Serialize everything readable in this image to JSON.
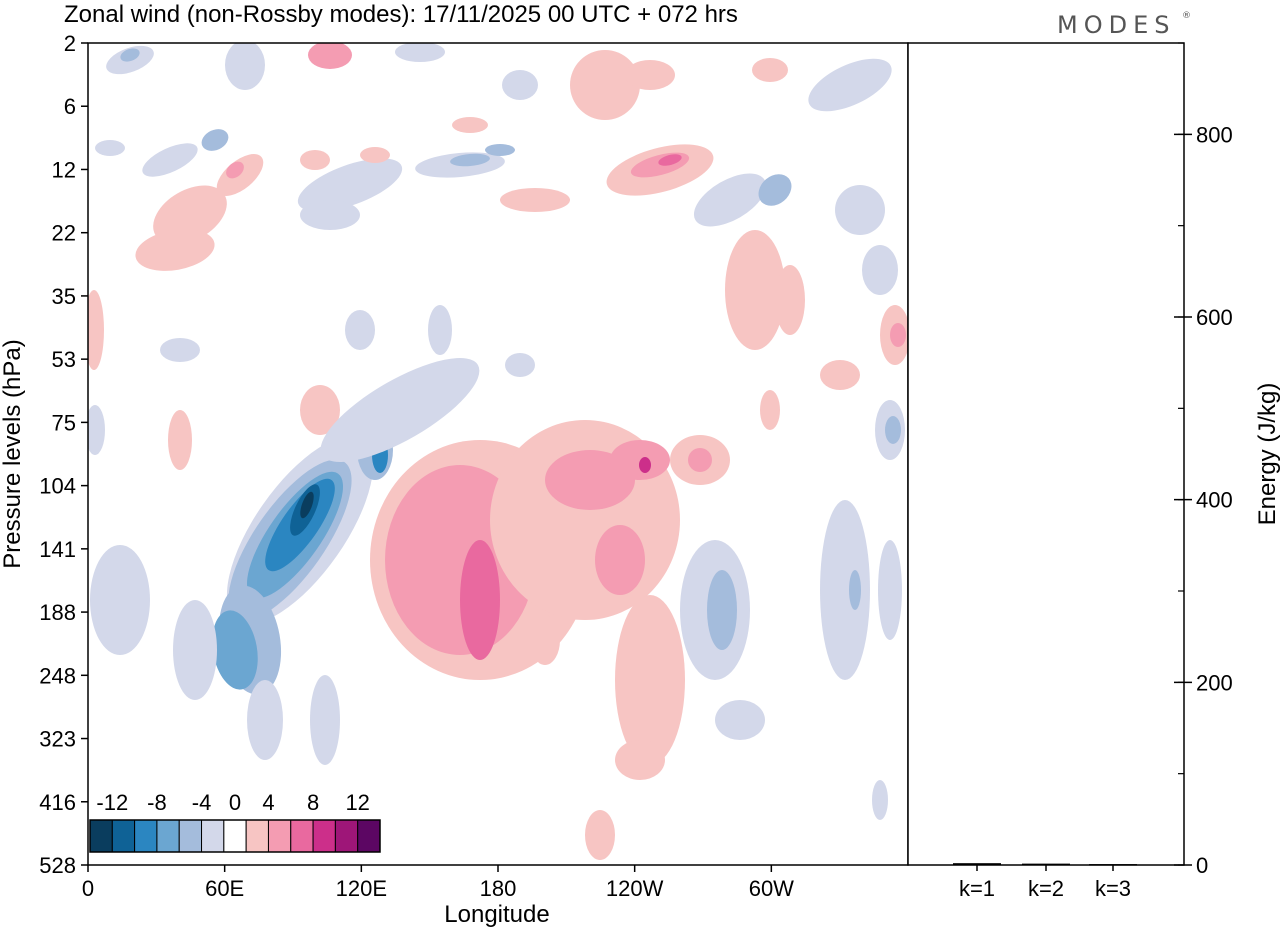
{
  "chart_data": [
    {
      "type": "heatmap",
      "title": "Zonal wind (non-Rossby modes):  17/11/2025  00 UTC  + 072 hrs",
      "xlabel": "Longitude",
      "ylabel": "Pressure levels (hPa)",
      "x_ticks": [
        "0",
        "60E",
        "120E",
        "180",
        "120W",
        "60W"
      ],
      "x_tick_degrees": [
        0,
        60,
        120,
        180,
        240,
        300
      ],
      "xlim": [
        0,
        360
      ],
      "y_ticks": [
        "2",
        "6",
        "12",
        "22",
        "35",
        "53",
        "75",
        "104",
        "141",
        "188",
        "248",
        "323",
        "416",
        "528"
      ],
      "colorbar": {
        "labels": [
          "-12",
          "-8",
          "-4",
          "0",
          "4",
          "8",
          "12"
        ],
        "levels": [
          -14,
          -12,
          -10,
          -8,
          -6,
          -4,
          -2,
          2,
          4,
          6,
          8,
          10,
          12,
          14
        ],
        "colors": [
          "#0a3d5e",
          "#0f6296",
          "#2b86c1",
          "#6ba6d1",
          "#a4bcdc",
          "#d3d8ea",
          "#ffffff",
          "#f7c5c3",
          "#f49cb2",
          "#e9699f",
          "#cc2f8a",
          "#9e1678",
          "#5c0663"
        ]
      },
      "features": [
        {
          "name": "strong negative jet core",
          "lon": 95,
          "level": "104-141",
          "value": -14
        },
        {
          "name": "positive band",
          "lon": 170,
          "level": "104-248",
          "value": 8
        },
        {
          "name": "positive maximum",
          "lon": 245,
          "level": "12",
          "value": 8
        },
        {
          "name": "positive upper band",
          "lon": 240,
          "level": "75-104",
          "value": 6
        },
        {
          "name": "negative patch",
          "lon": 280,
          "level": "141-188",
          "value": -6
        },
        {
          "name": "negative patch",
          "lon": 300,
          "level": "12-22",
          "value": -6
        },
        {
          "name": "positive edge",
          "lon": 355,
          "level": "35-53",
          "value": 6
        },
        {
          "name": "negative edge",
          "lon": 355,
          "level": "75-104",
          "value": -6
        }
      ]
    },
    {
      "type": "bar",
      "ylabel": "Energy (J/kg)",
      "categories": [
        "k=1",
        "k=2",
        "k=3"
      ],
      "values": [
        2,
        1.5,
        1
      ],
      "ylim": [
        0,
        900
      ],
      "y_ticks": [
        "0",
        "200",
        "400",
        "600",
        "800"
      ],
      "y_tick_values": [
        0,
        200,
        400,
        600,
        800
      ],
      "y_minor_step": 100
    }
  ],
  "brand": "MODES",
  "brand_mark": "®"
}
